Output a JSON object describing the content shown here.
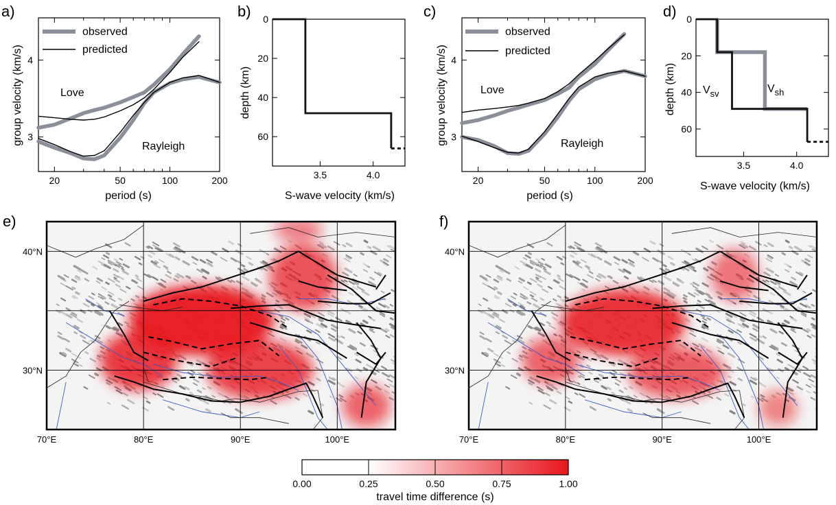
{
  "colors": {
    "observed": "#8a8f99",
    "predicted": "#000000",
    "anomaly": "#e8141c",
    "rivers": "#3a5bc7",
    "relief": "#9a9a9a"
  },
  "chart_data": [
    {
      "id": "a",
      "type": "line",
      "panel_label": "a)",
      "xlabel": "period (s)",
      "ylabel": "group velocity (km/s)",
      "xscale": "log",
      "xlim": [
        16,
        200
      ],
      "ylim": [
        2.55,
        4.55
      ],
      "xticks": [
        20,
        50,
        100,
        200
      ],
      "xtick_labels": [
        "20",
        "50",
        "100",
        "200"
      ],
      "yticks": [
        3,
        4
      ],
      "ytick_labels": [
        "3",
        "4"
      ],
      "legend": [
        "observed",
        "predicted"
      ],
      "annotations": [
        "Love",
        "Rayleigh"
      ],
      "series": [
        {
          "name": "observed",
          "wave": "Love",
          "x": [
            16,
            20,
            25,
            30,
            35,
            40,
            50,
            60,
            70,
            80,
            100,
            120,
            150
          ],
          "y": [
            3.12,
            3.16,
            3.24,
            3.31,
            3.35,
            3.38,
            3.45,
            3.52,
            3.58,
            3.68,
            3.88,
            4.08,
            4.31
          ]
        },
        {
          "name": "predicted",
          "wave": "Love",
          "x": [
            16,
            20,
            25,
            30,
            35,
            40,
            50,
            60,
            70,
            80,
            100,
            120,
            150
          ],
          "y": [
            3.27,
            3.25,
            3.23,
            3.22,
            3.23,
            3.26,
            3.34,
            3.42,
            3.51,
            3.62,
            3.84,
            4.04,
            4.24
          ]
        },
        {
          "name": "observed",
          "wave": "Rayleigh",
          "x": [
            16,
            20,
            25,
            30,
            35,
            40,
            50,
            60,
            70,
            80,
            100,
            120,
            150,
            200
          ],
          "y": [
            2.94,
            2.86,
            2.79,
            2.72,
            2.71,
            2.76,
            2.99,
            3.22,
            3.44,
            3.58,
            3.7,
            3.75,
            3.78,
            3.71
          ]
        },
        {
          "name": "predicted",
          "wave": "Rayleigh",
          "x": [
            16,
            20,
            25,
            30,
            35,
            40,
            50,
            60,
            70,
            80,
            100,
            120,
            150,
            200
          ],
          "y": [
            2.98,
            2.9,
            2.81,
            2.75,
            2.76,
            2.82,
            3.06,
            3.28,
            3.45,
            3.58,
            3.71,
            3.77,
            3.8,
            3.71
          ]
        }
      ]
    },
    {
      "id": "b",
      "type": "line",
      "panel_label": "b)",
      "xlabel": "S-wave velocity (km/s)",
      "ylabel": "depth (km)",
      "xlim": [
        3.05,
        4.3
      ],
      "ylim": [
        0,
        75
      ],
      "yinverted": true,
      "xticks": [
        3.5,
        4.0
      ],
      "xtick_labels": [
        "3.5",
        "4.0"
      ],
      "yticks": [
        0,
        20,
        40,
        60
      ],
      "ytick_labels": [
        "0",
        "20",
        "40",
        "60"
      ],
      "series": [
        {
          "name": "S-wave velocity",
          "x": [
            3.05,
            3.36,
            3.36,
            4.17,
            4.17,
            4.3
          ],
          "y": [
            0,
            0,
            48,
            48,
            66,
            66
          ]
        }
      ]
    },
    {
      "id": "c",
      "type": "line",
      "panel_label": "c)",
      "xlabel": "period (s)",
      "ylabel": "group velocity (km/s)",
      "xscale": "log",
      "xlim": [
        16,
        200
      ],
      "ylim": [
        2.55,
        4.55
      ],
      "xticks": [
        20,
        50,
        100,
        200
      ],
      "xtick_labels": [
        "20",
        "50",
        "100",
        "200"
      ],
      "yticks": [
        3,
        4
      ],
      "ytick_labels": [
        "3",
        "4"
      ],
      "legend": [
        "observed",
        "predicted"
      ],
      "annotations": [
        "Love",
        "Rayleigh"
      ],
      "series": [
        {
          "name": "observed",
          "wave": "Love",
          "x": [
            16,
            20,
            25,
            30,
            35,
            40,
            50,
            60,
            70,
            80,
            100,
            120,
            150
          ],
          "y": [
            3.18,
            3.22,
            3.28,
            3.34,
            3.38,
            3.42,
            3.48,
            3.56,
            3.64,
            3.78,
            3.95,
            4.13,
            4.34
          ]
        },
        {
          "name": "predicted",
          "wave": "Love",
          "x": [
            16,
            20,
            25,
            30,
            35,
            40,
            50,
            60,
            70,
            80,
            100,
            120,
            150
          ],
          "y": [
            3.32,
            3.35,
            3.37,
            3.39,
            3.41,
            3.44,
            3.5,
            3.59,
            3.69,
            3.81,
            3.99,
            4.15,
            4.33
          ]
        },
        {
          "name": "observed",
          "wave": "Rayleigh",
          "x": [
            16,
            20,
            25,
            30,
            35,
            40,
            50,
            60,
            70,
            80,
            100,
            120,
            150,
            200
          ],
          "y": [
            3.0,
            2.96,
            2.88,
            2.79,
            2.78,
            2.82,
            3.04,
            3.26,
            3.47,
            3.62,
            3.75,
            3.81,
            3.86,
            3.79
          ]
        },
        {
          "name": "predicted",
          "wave": "Rayleigh",
          "x": [
            16,
            20,
            25,
            30,
            35,
            40,
            50,
            60,
            70,
            80,
            100,
            120,
            150,
            200
          ],
          "y": [
            3.01,
            2.94,
            2.86,
            2.8,
            2.79,
            2.84,
            3.07,
            3.3,
            3.5,
            3.65,
            3.78,
            3.83,
            3.86,
            3.79
          ]
        }
      ]
    },
    {
      "id": "d",
      "type": "line",
      "panel_label": "d)",
      "xlabel": "S-wave velocity (km/s)",
      "ylabel": "depth (km)",
      "xlim": [
        3.05,
        4.3
      ],
      "ylim": [
        0,
        75
      ],
      "yinverted": true,
      "xticks": [
        3.5,
        4.0
      ],
      "xtick_labels": [
        "3.5",
        "4.0"
      ],
      "yticks": [
        0,
        20,
        40,
        60
      ],
      "ytick_labels": [
        "0",
        "20",
        "40",
        "60"
      ],
      "annotations": [
        {
          "main": "V",
          "sub": "sv"
        },
        {
          "main": "V",
          "sub": "sh"
        }
      ],
      "series": [
        {
          "name": "Vsh",
          "x": [
            3.25,
            3.25,
            3.7,
            3.7,
            4.1,
            4.1
          ],
          "y": [
            0,
            18,
            18,
            49,
            49,
            67
          ]
        },
        {
          "name": "Vsv",
          "x": [
            3.05,
            3.25,
            3.25,
            3.39,
            3.39,
            4.1,
            4.1,
            4.3
          ],
          "y": [
            0,
            0,
            18,
            18,
            49,
            49,
            67,
            67
          ]
        }
      ]
    },
    {
      "id": "e",
      "type": "heatmap",
      "panel_label": "e)",
      "xlim": [
        70,
        106
      ],
      "ylim": [
        25,
        42.5
      ],
      "lon_ticks": [
        "70°E",
        "80°E",
        "90°E",
        "100°E"
      ],
      "lat_ticks": [
        "30°N",
        "40°N"
      ],
      "anomalies": [
        {
          "lon": 86.0,
          "lat": 34.2,
          "value": 1.0,
          "rx": 7.5,
          "ry": 3.0
        },
        {
          "lon": 79.5,
          "lat": 30.8,
          "value": 0.8,
          "rx": 4.0,
          "ry": 2.5
        },
        {
          "lon": 92.0,
          "lat": 30.0,
          "value": 0.75,
          "rx": 5.5,
          "ry": 2.5
        },
        {
          "lon": 96.5,
          "lat": 37.8,
          "value": 0.65,
          "rx": 3.5,
          "ry": 2.8
        },
        {
          "lon": 103.0,
          "lat": 27.0,
          "value": 0.55,
          "rx": 2.5,
          "ry": 1.8
        },
        {
          "lon": 96.0,
          "lat": 41.8,
          "value": 0.4,
          "rx": 2.5,
          "ry": 1.0
        }
      ]
    },
    {
      "id": "f",
      "type": "heatmap",
      "panel_label": "f)",
      "xlim": [
        70,
        106
      ],
      "ylim": [
        25,
        42.5
      ],
      "lon_ticks": [
        "70°E",
        "80°E",
        "90°E",
        "100°E"
      ],
      "lat_ticks": [
        "30°N",
        "40°N"
      ],
      "anomalies": [
        {
          "lon": 86.0,
          "lat": 34.0,
          "value": 0.9,
          "rx": 6.5,
          "ry": 2.8
        },
        {
          "lon": 78.5,
          "lat": 30.8,
          "value": 0.55,
          "rx": 3.0,
          "ry": 2.0
        },
        {
          "lon": 91.5,
          "lat": 29.8,
          "value": 0.6,
          "rx": 5.0,
          "ry": 2.2
        },
        {
          "lon": 97.5,
          "lat": 38.0,
          "value": 0.45,
          "rx": 2.5,
          "ry": 2.2
        },
        {
          "lon": 102.0,
          "lat": 26.8,
          "value": 0.35,
          "rx": 2.0,
          "ry": 1.5
        }
      ]
    }
  ],
  "colorbar": {
    "label": "travel time difference (s)",
    "ticks": [
      "0.00",
      "0.25",
      "0.50",
      "0.75",
      "1.00"
    ],
    "range": [
      0,
      1
    ]
  }
}
